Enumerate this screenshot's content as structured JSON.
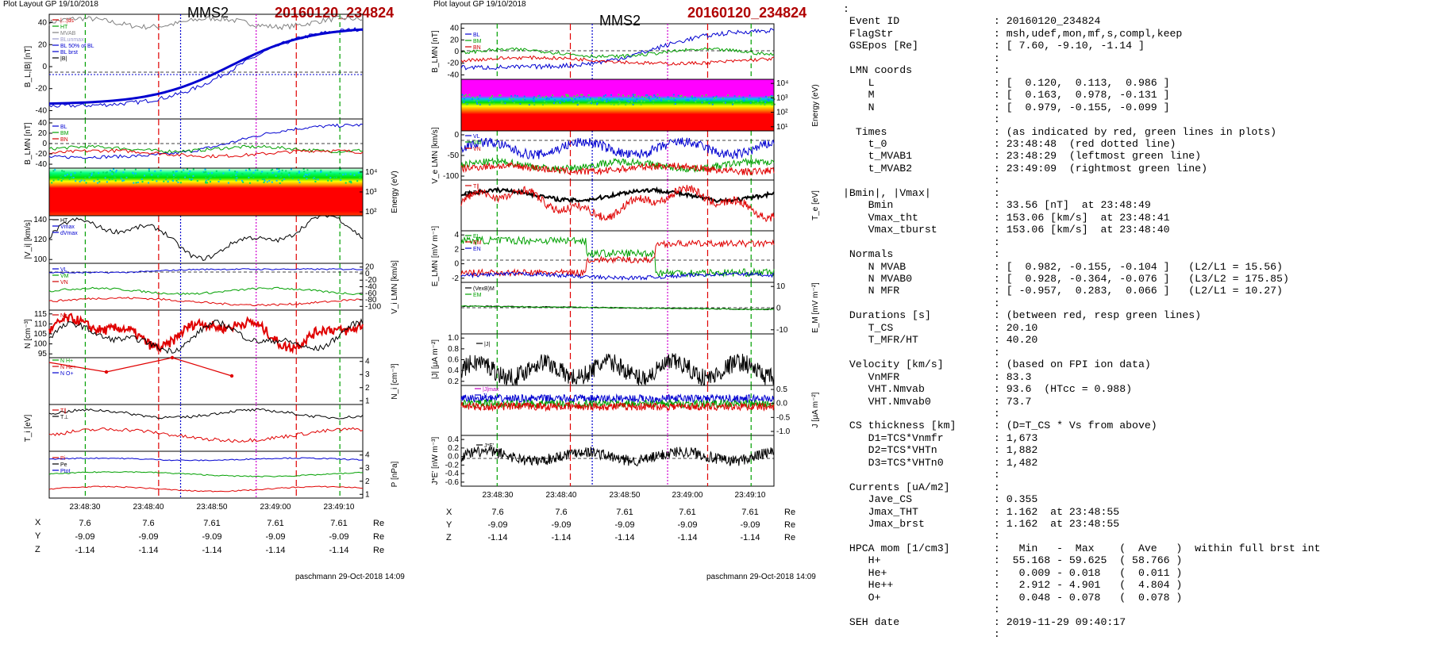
{
  "left": {
    "plot_layout": "Plot Layout GP 19/10/2018",
    "title": "MMS2",
    "event": "20160120_234824",
    "footer": "paschmann 29-Oct-2018 14:09",
    "time_labels": [
      "23:48:30",
      "23:48:40",
      "23:48:50",
      "23:49:00",
      "23:49:10"
    ],
    "pos_table": {
      "X": [
        "7.6",
        "7.6",
        "7.61",
        "7.61",
        "7.61"
      ],
      "Y": [
        "-9.09",
        "-9.09",
        "-9.09",
        "-9.09",
        "-9.09"
      ],
      "Z": [
        "-1.14",
        "-1.14",
        "-1.14",
        "-1.14",
        "-1.14"
      ],
      "unit": "Re"
    },
    "panels": [
      {
        "ylabel": "B_L,|B| [nT]",
        "ticks": [
          "40",
          "20",
          "0",
          "-20",
          "-40"
        ],
        "legend": [
          "|...|ds",
          "HT",
          "MVAB",
          "BLunmax",
          "BL 50% of BL",
          "BL brst",
          "|B|"
        ],
        "legend_colors": [
          "#d00000",
          "#00a000",
          "#808080",
          "#9999cc",
          "#0000d0",
          "#0000d0",
          "#000000"
        ]
      },
      {
        "ylabel": "B_LMN [nT]",
        "ticks": [
          "40",
          "20",
          "0",
          "-20",
          "-40"
        ],
        "legend": [
          "BL",
          "BM",
          "BN"
        ],
        "legend_colors": [
          "#0000d0",
          "#00a000",
          "#d00000"
        ]
      },
      {
        "ylabel": "Energy (eV)",
        "ticks": [
          "10⁴",
          "10³",
          "10²"
        ]
      },
      {
        "ylabel": "|V_i| [km/s]",
        "ticks": [
          "140",
          "120",
          "100"
        ],
        "legend": [
          "HT",
          "Vmax",
          "dVmax"
        ],
        "legend_colors": [
          "#000000",
          "#0000d0",
          "#0000d0"
        ]
      },
      {
        "ylabel": "V_i LMN [km/s]",
        "ticks": [
          "20",
          "0",
          "-20",
          "-40",
          "-60",
          "-80",
          "-100"
        ],
        "legend": [
          "VL",
          "VM",
          "VN"
        ],
        "legend_colors": [
          "#0000d0",
          "#00a000",
          "#d00000"
        ]
      },
      {
        "ylabel": "N [cm⁻³]",
        "ticks": [
          "115",
          "110",
          "105",
          "100",
          "95"
        ],
        "legend": [
          "Ne"
        ],
        "legend_colors": [
          "#d00000"
        ]
      },
      {
        "ylabel": "N_i [cm⁻³]",
        "ticks": [
          "4",
          "3",
          "2",
          "1"
        ],
        "legend": [
          "N H+",
          "N He+",
          "N O+"
        ],
        "legend_colors": [
          "#00a000",
          "#d00000",
          "#0000d0"
        ]
      },
      {
        "ylabel": "T_i [eV]",
        "ticks": [],
        "legend": [
          "T∥",
          "T⊥"
        ],
        "legend_colors": [
          "#d00000",
          "#000000"
        ]
      },
      {
        "ylabel": "P [nPa]",
        "ticks": [
          "4",
          "3",
          "2",
          "1"
        ],
        "legend": [
          "Pi",
          "Pe",
          "Ptot"
        ],
        "legend_colors": [
          "#d00000",
          "#000000",
          "#0000d0"
        ]
      }
    ]
  },
  "mid": {
    "plot_layout": "Plot layout GP 19/10/2018",
    "title": "MMS2",
    "event": "20160120_234824",
    "footer": "paschmann 29-Oct-2018 14:09",
    "time_labels": [
      "23:48:30",
      "23:48:40",
      "23:48:50",
      "23:49:00",
      "23:49:10"
    ],
    "pos_table": {
      "X": [
        "7.6",
        "7.6",
        "7.61",
        "7.61",
        "7.61"
      ],
      "Y": [
        "-9.09",
        "-9.09",
        "-9.09",
        "-9.09",
        "-9.09"
      ],
      "Z": [
        "-1.14",
        "-1.14",
        "-1.14",
        "-1.14",
        "-1.14"
      ],
      "unit": "Re"
    },
    "panels": [
      {
        "ylabel": "B_LMN [nT]",
        "ticks": [
          "40",
          "20",
          "0",
          "-20",
          "-40"
        ],
        "legend": [
          "BL",
          "BM",
          "BN"
        ],
        "legend_colors": [
          "#0000d0",
          "#00a000",
          "#d00000"
        ]
      },
      {
        "ylabel": "Energy (eV)",
        "ticks": [
          "10⁴",
          "10³",
          "10²",
          "10¹"
        ]
      },
      {
        "ylabel": "V_e LMN [km/s]",
        "ticks": [
          "0",
          "-50",
          "-100"
        ],
        "legend": [
          "VL",
          "VM",
          "VN"
        ],
        "legend_colors": [
          "#0000d0",
          "#00a000",
          "#d00000"
        ]
      },
      {
        "ylabel": "T_e [eV]",
        "ticks": [],
        "legend": [
          "T∥",
          "T⊥"
        ],
        "legend_colors": [
          "#d00000",
          "#000000"
        ]
      },
      {
        "ylabel": "E_LMN [mV m⁻¹]",
        "ticks": [
          "4",
          "2",
          "0",
          "-2"
        ],
        "legend": [
          "EL",
          "EM",
          "EN"
        ],
        "legend_colors": [
          "#00a000",
          "#d00000",
          "#0000d0"
        ]
      },
      {
        "ylabel": "E_M [mV m⁻²]",
        "ticks": [
          "10",
          "0",
          "-10"
        ],
        "legend": [
          "(VexB)M",
          "EM"
        ],
        "legend_colors": [
          "#000000",
          "#00a000"
        ]
      },
      {
        "ylabel": "|J| [μA m⁻²]",
        "ticks": [
          "1.0",
          "0.8",
          "0.6",
          "0.4",
          "0.2"
        ],
        "legend": [
          "|J|"
        ],
        "legend_colors": [
          "#000000"
        ]
      },
      {
        "ylabel": "J [μA m⁻²]",
        "ticks": [
          "0.5",
          "0.0",
          "-0.5",
          "-1.0"
        ],
        "legend": [
          "|J|max",
          "JL",
          "JM",
          "JN"
        ],
        "legend_colors": [
          "#c000c0",
          "#0000d0",
          "#00a000",
          "#d00000"
        ]
      },
      {
        "ylabel": "J*E' [nW m⁻³]",
        "ticks": [
          "0.4",
          "0.2",
          "0.0",
          "-0.2",
          "-0.4",
          "-0.6"
        ],
        "legend": [
          "J*E'"
        ],
        "legend_colors": [
          "#000000"
        ]
      }
    ]
  },
  "text_lines": [
    ":",
    " Event ID               : 20160120_234824",
    " FlagStr                : msh,udef,mon,mf,s,compl,keep",
    " GSEpos [Re]            : [ 7.60, -9.10, -1.14 ]",
    "                        :",
    " LMN coords             :",
    "    L                   : [  0.120,  0.113,  0.986 ]",
    "    M                   : [  0.163,  0.978, -0.131 ]",
    "    N                   : [  0.979, -0.155, -0.099 ]",
    "                        :",
    "  Times                 : (as indicated by red, green lines in plots)",
    "    t_0                 : 23:48:48  (red dotted line)",
    "    t_MVAB1             : 23:48:29  (leftmost green line)",
    "    t_MVAB2             : 23:49:09  (rightmost green line)",
    "                        :",
    "|Bmin|, |Vmax|          :",
    "    Bmin                : 33.56 [nT]  at 23:48:49",
    "    Vmax_tht            : 153.06 [km/s]  at 23:48:41",
    "    Vmax_tburst         : 153.06 [km/s]  at 23:48:40",
    "                        :",
    " Normals                :",
    "    N MVAB              : [  0.982, -0.155, -0.104 ]   (L2/L1 = 15.56)",
    "    N MVAB0             : [  0.928, -0.364, -0.076 ]   (L3/L2 = 175.85)",
    "    N MFR               : [ -0.957,  0.283,  0.066 ]   (L2/L1 = 10.27)",
    "                        :",
    " Durations [s]          : (between red, resp green lines)",
    "    T_CS                : 20.10",
    "    T_MFR/HT            : 40.20",
    "                        :",
    " Velocity [km/s]        : (based on FPI ion data)",
    "    VnMFR               : 83.3",
    "    VHT.Nmvab           : 93.6  (HTcc = 0.988)",
    "    VHT.Nmvab0          : 73.7",
    "                        :",
    " CS thickness [km]      : (D=T_CS * Vs from above)",
    "    D1=TCS*Vnmfr        : 1,673",
    "    D2=TCS*VHTn         : 1,882",
    "    D3=TCS*VHTn0        : 1,482",
    "                        :",
    " Currents [uA/m2]       :",
    "    Jave_CS             : 0.355",
    "    Jmax_THT            : 1.162  at 23:48:55",
    "    Jmax_brst           : 1.162  at 23:48:55",
    "                        :",
    " HPCA mom [1/cm3]       :   Min   -  Max    (  Ave   )  within full brst int",
    "    H+                  :  55.168 - 59.625  ( 58.766 )",
    "    He+                 :   0.009 - 0.018   (  0.011 )",
    "    He++                :   2.912 - 4.901   (  4.804 )",
    "    O+                  :   0.048 - 0.078   (  0.078 )",
    "                        :",
    " SEH date               : 2019-11-29 09:40:17",
    "                        :"
  ],
  "colors": {
    "event": "#b00000",
    "red": "#e00000",
    "green": "#00a000",
    "blue": "#0000d0",
    "magenta": "#d000d0"
  }
}
